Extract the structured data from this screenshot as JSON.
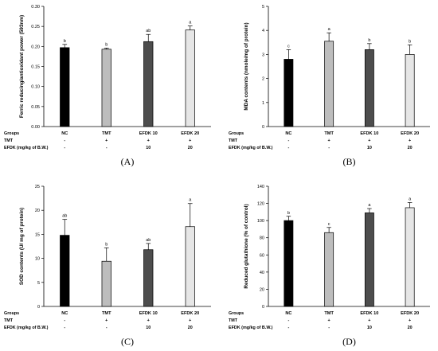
{
  "row_labels": {
    "groups": "Groups",
    "tmt": "TMT",
    "efdk": "EFDK (mg/kg of B.W.)"
  },
  "treatments": {
    "tmt": [
      "-",
      "+",
      "+",
      "+"
    ],
    "efdk": [
      "-",
      "-",
      "10",
      "20"
    ]
  },
  "bar_colors": [
    "#000000",
    "#bdbdbd",
    "#4d4d4d",
    "#e6e6e6"
  ],
  "chart_data": [
    {
      "type": "bar",
      "caption": "(A)",
      "ylabel": "Ferric reducing/antioxidant power (593nm)",
      "categories": [
        "NC",
        "TMT",
        "EFDK 10",
        "EFDK 20"
      ],
      "values": [
        0.197,
        0.193,
        0.212,
        0.241
      ],
      "errors": [
        0.008,
        0.003,
        0.018,
        0.01
      ],
      "labels": [
        "b",
        "b",
        "ab",
        "a"
      ],
      "ylim": [
        0,
        0.3
      ],
      "yticks": [
        "0.00",
        "0.05",
        "0.10",
        "0.15",
        "0.20",
        "0.25",
        "0.30"
      ]
    },
    {
      "type": "bar",
      "caption": "(B)",
      "ylabel": "MDA contents (nmole/mg of protein)",
      "categories": [
        "NC",
        "TMT",
        "EFDK 10",
        "EFDK 20"
      ],
      "values": [
        2.8,
        3.55,
        3.2,
        3.0
      ],
      "errors": [
        0.4,
        0.35,
        0.25,
        0.4
      ],
      "labels": [
        "c",
        "a",
        "b",
        "b"
      ],
      "ylim": [
        0,
        5
      ],
      "yticks": [
        "0",
        "1",
        "2",
        "3",
        "4",
        "5"
      ]
    },
    {
      "type": "bar",
      "caption": "(C)",
      "ylabel": "SOD contents (U/ mg of protein)",
      "categories": [
        "NC",
        "TMT",
        "EFDK 10",
        "EFDK 20"
      ],
      "values": [
        14.8,
        9.4,
        11.8,
        16.6
      ],
      "errors": [
        3.3,
        2.8,
        1.3,
        4.8
      ],
      "labels": [
        "ab",
        "b",
        "ab",
        "a"
      ],
      "ylim": [
        0,
        25
      ],
      "yticks": [
        "0",
        "5",
        "10",
        "15",
        "20",
        "25"
      ]
    },
    {
      "type": "bar",
      "caption": "(D)",
      "ylabel": "Reduced glutathione (% of control)",
      "categories": [
        "NC",
        "TMT",
        "EFDK 10",
        "EFDK 20"
      ],
      "values": [
        100,
        86,
        109,
        115
      ],
      "errors": [
        5,
        6,
        5,
        6
      ],
      "labels": [
        "b",
        "c",
        "a",
        "a"
      ],
      "ylim": [
        0,
        140
      ],
      "yticks": [
        "0",
        "20",
        "40",
        "60",
        "80",
        "100",
        "120",
        "140"
      ]
    }
  ]
}
